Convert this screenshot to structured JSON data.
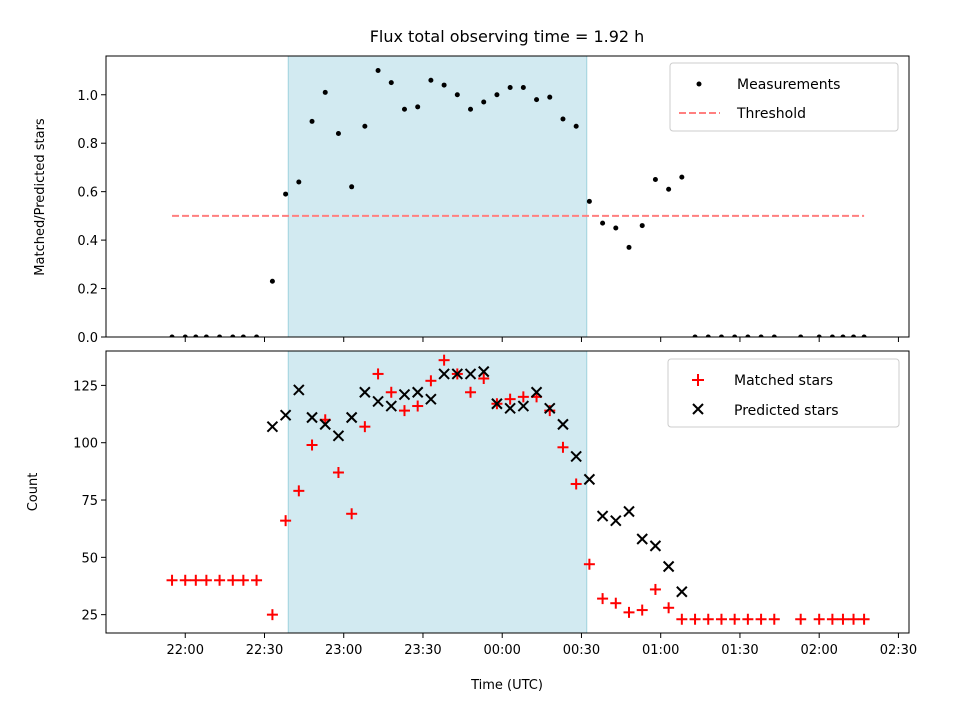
{
  "chart_data": [
    {
      "type": "scatter",
      "title": "Flux total observing time = 1.92 h",
      "xlabel": "",
      "ylabel": "Matched/Predicted stars",
      "x_unit": "time (UTC)",
      "ylim": [
        0,
        1.16
      ],
      "yticks": [
        "0.0",
        "0.2",
        "0.4",
        "0.6",
        "0.8",
        "1.0"
      ],
      "grid": false,
      "legend_position": "top-right",
      "shaded_interval": {
        "start": "22:39",
        "end": "00:32",
        "color": "#add8e6"
      },
      "threshold": {
        "name": "Threshold",
        "value": 0.5,
        "x_start": "21:55",
        "x_end": "02:17",
        "color": "#ff7f7f",
        "style": "dashed"
      },
      "series": [
        {
          "name": "Measurements",
          "marker": "dot",
          "color": "#000000",
          "points": [
            [
              "21:55",
              0
            ],
            [
              "22:00",
              0
            ],
            [
              "22:04",
              0
            ],
            [
              "22:08",
              0
            ],
            [
              "22:13",
              0
            ],
            [
              "22:18",
              0
            ],
            [
              "22:22",
              0
            ],
            [
              "22:27",
              0
            ],
            [
              "22:33",
              0.23
            ],
            [
              "22:38",
              0.59
            ],
            [
              "22:43",
              0.64
            ],
            [
              "22:48",
              0.89
            ],
            [
              "22:53",
              1.01
            ],
            [
              "22:58",
              0.84
            ],
            [
              "23:03",
              0.62
            ],
            [
              "23:08",
              0.87
            ],
            [
              "23:13",
              1.1
            ],
            [
              "23:18",
              1.05
            ],
            [
              "23:23",
              0.94
            ],
            [
              "23:28",
              0.95
            ],
            [
              "23:33",
              1.06
            ],
            [
              "23:38",
              1.04
            ],
            [
              "23:43",
              1.0
            ],
            [
              "23:48",
              0.94
            ],
            [
              "23:53",
              0.97
            ],
            [
              "23:58",
              1.0
            ],
            [
              "00:03",
              1.03
            ],
            [
              "00:08",
              1.03
            ],
            [
              "00:13",
              0.98
            ],
            [
              "00:18",
              0.99
            ],
            [
              "00:23",
              0.9
            ],
            [
              "00:28",
              0.87
            ],
            [
              "00:33",
              0.56
            ],
            [
              "00:38",
              0.47
            ],
            [
              "00:43",
              0.45
            ],
            [
              "00:48",
              0.37
            ],
            [
              "00:53",
              0.46
            ],
            [
              "00:58",
              0.65
            ],
            [
              "01:03",
              0.61
            ],
            [
              "01:08",
              0.66
            ],
            [
              "01:13",
              0
            ],
            [
              "01:18",
              0
            ],
            [
              "01:23",
              0
            ],
            [
              "01:28",
              0
            ],
            [
              "01:33",
              0
            ],
            [
              "01:38",
              0
            ],
            [
              "01:43",
              0
            ],
            [
              "01:53",
              0
            ],
            [
              "02:00",
              0
            ],
            [
              "02:05",
              0
            ],
            [
              "02:09",
              0
            ],
            [
              "02:13",
              0
            ],
            [
              "02:17",
              0
            ]
          ]
        }
      ],
      "legend": [
        "Measurements",
        "Threshold"
      ]
    },
    {
      "type": "scatter",
      "title": "",
      "xlabel": "Time (UTC)",
      "ylabel": "Count",
      "ylim": [
        17,
        140
      ],
      "yticks": [
        "25",
        "50",
        "75",
        "100",
        "125"
      ],
      "xticks": [
        "22:00",
        "22:30",
        "23:00",
        "23:30",
        "00:00",
        "00:30",
        "01:00",
        "01:30",
        "02:00",
        "02:30"
      ],
      "grid": false,
      "legend_position": "top-right",
      "shaded_interval": {
        "start": "22:39",
        "end": "00:32",
        "color": "#add8e6"
      },
      "series": [
        {
          "name": "Matched stars",
          "marker": "plus",
          "color": "#ff0000",
          "points": [
            [
              "21:55",
              40
            ],
            [
              "22:00",
              40
            ],
            [
              "22:04",
              40
            ],
            [
              "22:08",
              40
            ],
            [
              "22:13",
              40
            ],
            [
              "22:18",
              40
            ],
            [
              "22:22",
              40
            ],
            [
              "22:27",
              40
            ],
            [
              "22:33",
              25
            ],
            [
              "22:38",
              66
            ],
            [
              "22:43",
              79
            ],
            [
              "22:48",
              99
            ],
            [
              "22:53",
              110
            ],
            [
              "22:58",
              87
            ],
            [
              "23:03",
              69
            ],
            [
              "23:08",
              107
            ],
            [
              "23:13",
              130
            ],
            [
              "23:18",
              122
            ],
            [
              "23:23",
              114
            ],
            [
              "23:28",
              116
            ],
            [
              "23:33",
              127
            ],
            [
              "23:38",
              136
            ],
            [
              "23:43",
              130
            ],
            [
              "23:48",
              122
            ],
            [
              "23:53",
              128
            ],
            [
              "23:58",
              117
            ],
            [
              "00:03",
              119
            ],
            [
              "00:08",
              120
            ],
            [
              "00:13",
              120
            ],
            [
              "00:18",
              114
            ],
            [
              "00:23",
              98
            ],
            [
              "00:28",
              82
            ],
            [
              "00:33",
              47
            ],
            [
              "00:38",
              32
            ],
            [
              "00:43",
              30
            ],
            [
              "00:48",
              26
            ],
            [
              "00:53",
              27
            ],
            [
              "00:58",
              36
            ],
            [
              "01:03",
              28
            ],
            [
              "01:08",
              23
            ],
            [
              "01:13",
              23
            ],
            [
              "01:18",
              23
            ],
            [
              "01:23",
              23
            ],
            [
              "01:28",
              23
            ],
            [
              "01:33",
              23
            ],
            [
              "01:38",
              23
            ],
            [
              "01:43",
              23
            ],
            [
              "01:53",
              23
            ],
            [
              "02:00",
              23
            ],
            [
              "02:05",
              23
            ],
            [
              "02:09",
              23
            ],
            [
              "02:13",
              23
            ],
            [
              "02:17",
              23
            ]
          ]
        },
        {
          "name": "Predicted stars",
          "marker": "x",
          "color": "#000000",
          "points": [
            [
              "22:33",
              107
            ],
            [
              "22:38",
              112
            ],
            [
              "22:43",
              123
            ],
            [
              "22:48",
              111
            ],
            [
              "22:53",
              108
            ],
            [
              "22:58",
              103
            ],
            [
              "23:03",
              111
            ],
            [
              "23:08",
              122
            ],
            [
              "23:13",
              118
            ],
            [
              "23:18",
              116
            ],
            [
              "23:23",
              121
            ],
            [
              "23:28",
              122
            ],
            [
              "23:33",
              119
            ],
            [
              "23:38",
              130
            ],
            [
              "23:43",
              130
            ],
            [
              "23:48",
              130
            ],
            [
              "23:53",
              131
            ],
            [
              "23:58",
              117
            ],
            [
              "00:03",
              115
            ],
            [
              "00:08",
              116
            ],
            [
              "00:13",
              122
            ],
            [
              "00:18",
              115
            ],
            [
              "00:23",
              108
            ],
            [
              "00:28",
              94
            ],
            [
              "00:33",
              84
            ],
            [
              "00:38",
              68
            ],
            [
              "00:43",
              66
            ],
            [
              "00:48",
              70
            ],
            [
              "00:53",
              58
            ],
            [
              "00:58",
              55
            ],
            [
              "01:03",
              46
            ],
            [
              "01:08",
              35
            ]
          ]
        }
      ],
      "legend": [
        "Matched stars",
        "Predicted stars"
      ]
    }
  ]
}
